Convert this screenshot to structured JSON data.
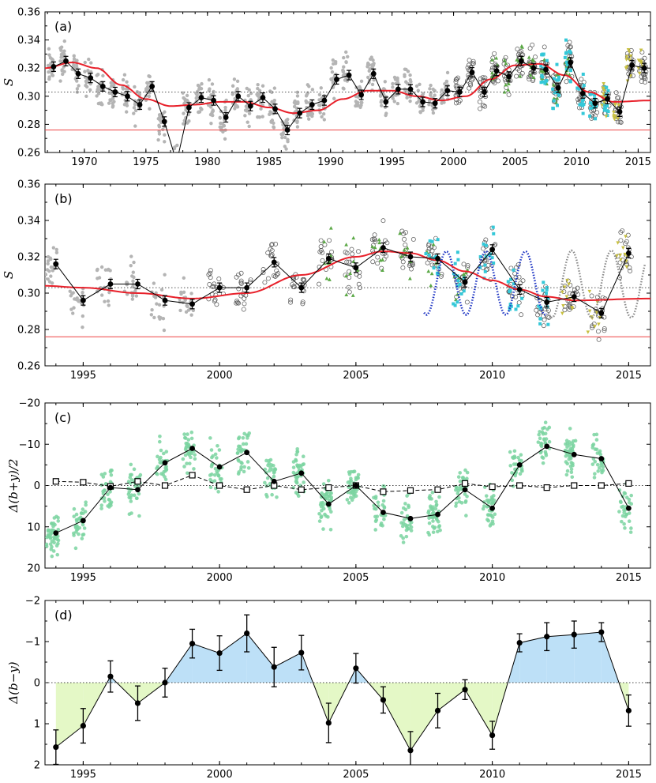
{
  "chart_data": [
    {
      "panel": "(a)",
      "type": "line",
      "ylabel": "S",
      "xlim": [
        1966.8,
        2016.0
      ],
      "ylim": [
        0.26,
        0.36
      ],
      "xticks": [
        "1970",
        "1975",
        "1980",
        "1985",
        "1990",
        "1995",
        "2000",
        "2005",
        "2010",
        "2015"
      ],
      "yticks": [
        "0.26",
        "0.28",
        "0.30",
        "0.32",
        "0.34",
        "0.36"
      ],
      "mean_level": 0.303,
      "basal_level": 0.276,
      "annual_means": {
        "x": [
          1967.5,
          1968.5,
          1969.5,
          1970.5,
          1971.5,
          1972.5,
          1973.5,
          1974.5,
          1975.5,
          1976.5,
          1977.5,
          1978.5,
          1979.5,
          1980.5,
          1981.5,
          1982.5,
          1983.5,
          1984.5,
          1985.5,
          1986.5,
          1987.5,
          1988.5,
          1989.5,
          1990.5,
          1991.5,
          1992.5,
          1993.5,
          1994.5,
          1995.5,
          1996.5,
          1997.5,
          1998.5,
          1999.5,
          2000.5,
          2001.5,
          2002.5,
          2003.5,
          2004.5,
          2005.5,
          2006.5,
          2007.5,
          2008.5,
          2009.5,
          2010.5,
          2011.5,
          2012.5,
          2013.5,
          2014.5,
          2015.5
        ],
        "y": [
          0.321,
          0.325,
          0.316,
          0.313,
          0.307,
          0.303,
          0.3,
          0.294,
          0.307,
          0.282,
          0.253,
          0.292,
          0.299,
          0.297,
          0.285,
          0.3,
          0.293,
          0.299,
          0.291,
          0.276,
          0.288,
          0.294,
          0.297,
          0.312,
          0.315,
          0.301,
          0.316,
          0.296,
          0.305,
          0.305,
          0.296,
          0.295,
          0.304,
          0.303,
          0.317,
          0.303,
          0.318,
          0.314,
          0.325,
          0.32,
          0.319,
          0.306,
          0.324,
          0.302,
          0.295,
          0.298,
          0.289,
          0.322,
          0.32
        ]
      },
      "model_curve": {
        "x": [
          1966.8,
          1969,
          1971,
          1973,
          1975,
          1977,
          1979,
          1981,
          1983,
          1985,
          1987,
          1989,
          1991,
          1993,
          1995,
          1997,
          1999,
          2001,
          2003,
          2005,
          2007,
          2009,
          2011,
          2013,
          2016
        ],
        "y": [
          0.32,
          0.324,
          0.32,
          0.308,
          0.298,
          0.293,
          0.294,
          0.296,
          0.296,
          0.292,
          0.288,
          0.29,
          0.298,
          0.304,
          0.304,
          0.3,
          0.297,
          0.3,
          0.312,
          0.322,
          0.323,
          0.315,
          0.303,
          0.296,
          0.297
        ]
      },
      "series": [
        "gray dots (1967–2000)",
        "open circles (2000–2014)",
        "green triangles",
        "cyan squares",
        "yellow triangles"
      ]
    },
    {
      "panel": "(b)",
      "type": "line",
      "ylabel": "S",
      "xlim": [
        1993.6,
        2015.8
      ],
      "ylim": [
        0.26,
        0.36
      ],
      "xticks": [
        "1995",
        "2000",
        "2005",
        "2010",
        "2015"
      ],
      "yticks": [
        "0.26",
        "0.28",
        "0.30",
        "0.32",
        "0.34",
        "0.36"
      ],
      "mean_level": 0.303,
      "basal_level": 0.276,
      "annual_means": {
        "x": [
          1994,
          1995,
          1996,
          1997,
          1998,
          1999,
          2000,
          2001,
          2002,
          2003,
          2004,
          2005,
          2006,
          2007,
          2008,
          2009,
          2010,
          2011,
          2012,
          2013,
          2014,
          2015
        ],
        "y": [
          0.316,
          0.296,
          0.305,
          0.305,
          0.296,
          0.294,
          0.303,
          0.303,
          0.317,
          0.303,
          0.319,
          0.314,
          0.325,
          0.32,
          0.319,
          0.306,
          0.324,
          0.302,
          0.295,
          0.298,
          0.289,
          0.322
        ]
      },
      "model_curve": {
        "x": [
          1993.6,
          1995,
          1997,
          1999,
          2001,
          2003,
          2005,
          2006,
          2007,
          2008,
          2009,
          2010,
          2011,
          2012,
          2013,
          2015.8
        ],
        "y": [
          0.304,
          0.303,
          0.3,
          0.297,
          0.3,
          0.31,
          0.32,
          0.323,
          0.322,
          0.318,
          0.312,
          0.307,
          0.302,
          0.298,
          0.296,
          0.297
        ]
      },
      "short_cycle_fits": [
        "blue dotted (2007.5–2012)",
        "gray dotted (2012–2015.5)"
      ]
    },
    {
      "panel": "(c)",
      "type": "line",
      "ylabel": "Δ(b+y)/2",
      "xlim": [
        1993.6,
        2015.8
      ],
      "ylim_inverted": [
        20,
        -20
      ],
      "xticks": [
        "1995",
        "2000",
        "2005",
        "2010",
        "2015"
      ],
      "yticks": [
        "−20",
        "−10",
        "0",
        "10",
        "20"
      ],
      "series": [
        {
          "name": "annual means (filled)",
          "x": [
            1994,
            1995,
            1996,
            1997,
            1998,
            1999,
            2000,
            2001,
            2002,
            2003,
            2004,
            2005,
            2006,
            2007,
            2008,
            2009,
            2010,
            2011,
            2012,
            2013,
            2014,
            2015
          ],
          "values": [
            11.5,
            8.5,
            0.5,
            1.0,
            -5.5,
            -9.0,
            -4.5,
            -8.0,
            -1.0,
            -3.0,
            4.5,
            0.0,
            6.5,
            8.0,
            7.0,
            1.0,
            5.5,
            -5.0,
            -9.5,
            -7.5,
            -6.5,
            5.5
          ]
        },
        {
          "name": "comparison star (open squares)",
          "x": [
            1994,
            1995,
            1996,
            1997,
            1998,
            1999,
            2000,
            2001,
            2002,
            2003,
            2004,
            2005,
            2006,
            2007,
            2008,
            2009,
            2010,
            2011,
            2012,
            2013,
            2014,
            2015
          ],
          "values": [
            -1.0,
            -0.8,
            0.2,
            -1.0,
            0.0,
            -2.5,
            0.0,
            1.0,
            0.0,
            1.0,
            0.5,
            0.0,
            1.5,
            1.2,
            1.0,
            -0.5,
            0.3,
            0.0,
            0.5,
            0.0,
            0.0,
            -0.5
          ]
        }
      ]
    },
    {
      "panel": "(d)",
      "type": "area",
      "ylabel": "Δ(b−y)",
      "xlim": [
        1993.6,
        2015.8
      ],
      "ylim_inverted": [
        2,
        -2
      ],
      "xticks": [
        "1995",
        "2000",
        "2005",
        "2010",
        "2015"
      ],
      "yticks": [
        "−2",
        "−1",
        "0",
        "1",
        "2"
      ],
      "series": [
        {
          "name": "annual Δ(b−y)",
          "x": [
            1994,
            1995,
            1996,
            1997,
            1998,
            1999,
            2000,
            2001,
            2002,
            2003,
            2004,
            2005,
            2006,
            2007,
            2008,
            2009,
            2010,
            2011,
            2012,
            2013,
            2014,
            2015
          ],
          "values": [
            1.57,
            1.05,
            -0.15,
            0.5,
            0.0,
            -0.95,
            -0.72,
            -1.2,
            -0.38,
            -0.73,
            0.98,
            -0.35,
            0.42,
            1.65,
            0.68,
            0.17,
            1.28,
            -0.97,
            -1.12,
            -1.17,
            -1.23,
            0.68
          ],
          "errors": [
            0.42,
            0.42,
            0.38,
            0.42,
            0.35,
            0.35,
            0.42,
            0.45,
            0.48,
            0.42,
            0.48,
            0.36,
            0.32,
            0.46,
            0.42,
            0.24,
            0.34,
            0.22,
            0.34,
            0.33,
            0.23,
            0.38
          ]
        }
      ]
    }
  ],
  "colors": {
    "model": "#e8202a",
    "basal_line": "#ee4444",
    "gray_points": "#b4b4b4",
    "cyan_points": "#34c8d8",
    "green_points": "#5aa845",
    "yellow_points": "#c8c040",
    "scatter_c": "#7ad4a0",
    "blue_fill": "#bde0f7",
    "green_fill": "#e4f8c6",
    "blue_dotted": "#1f36c4"
  }
}
